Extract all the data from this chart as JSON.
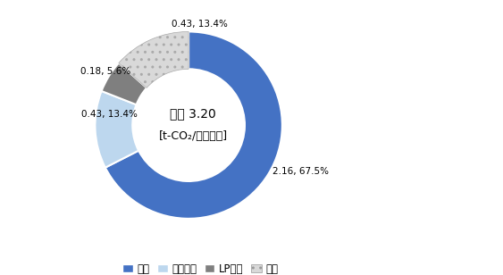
{
  "labels": [
    "電気",
    "都市ガス",
    "LPガス",
    "灯油"
  ],
  "values": [
    2.16,
    0.43,
    0.18,
    0.43
  ],
  "colors": [
    "#4472C4",
    "#BDD7EE",
    "#7F7F7F",
    "#D9D9D9"
  ],
  "hatches": [
    "",
    "",
    "",
    ".."
  ],
  "center_line1": "合計 3.20",
  "center_line2": "[t-CO₂/世帯・年]",
  "slice_labels": [
    "2.16, 67.5%",
    "0.43, 13.4%",
    "0.18, 5.6%",
    "0.43, 13.4%"
  ],
  "legend_labels": [
    "電気",
    "都市ガス",
    "LPガス",
    "灯油"
  ],
  "figure_width": 5.63,
  "figure_height": 3.08,
  "dpi": 100
}
